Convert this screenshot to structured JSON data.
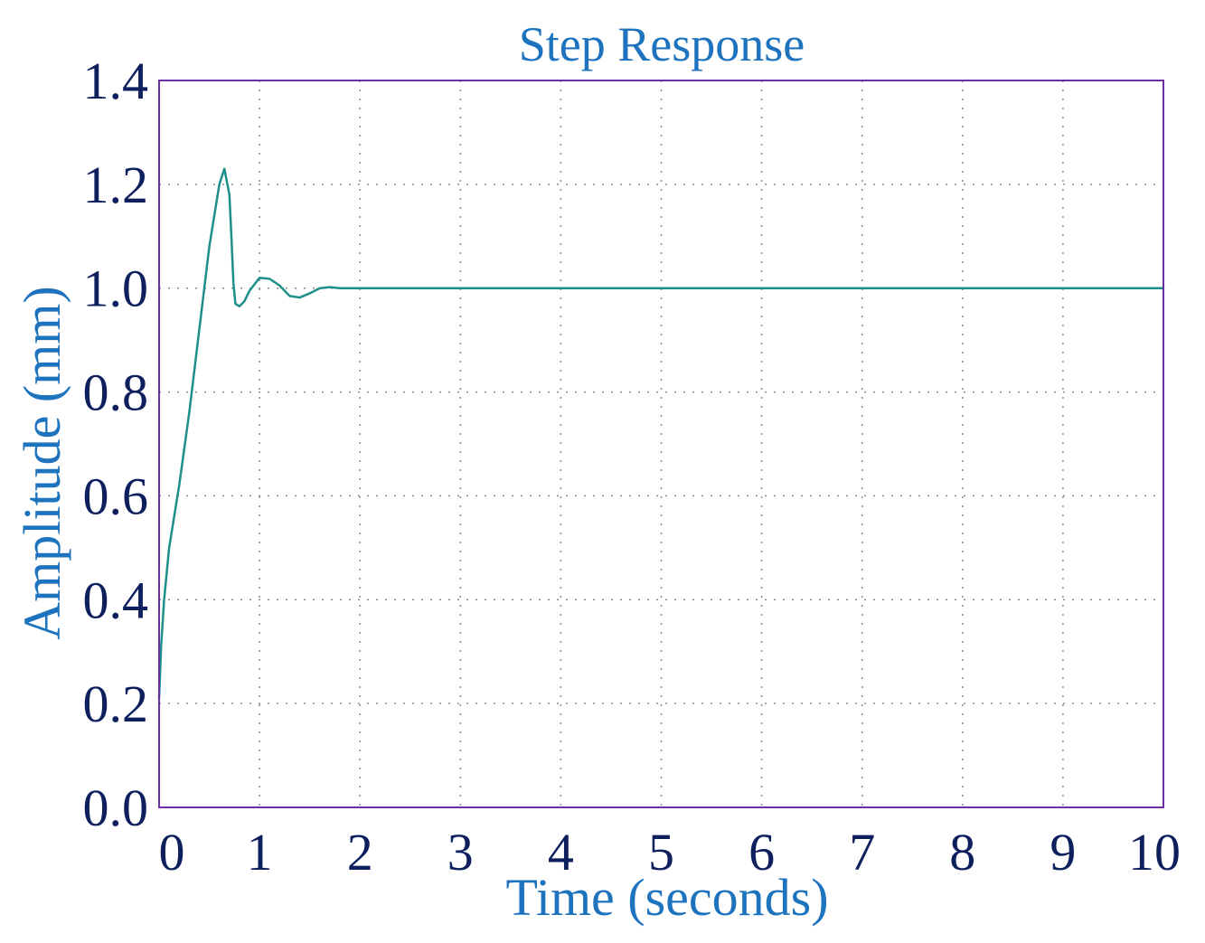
{
  "chart_data": {
    "type": "line",
    "title": "Step Response",
    "xlabel": "Time (seconds)",
    "ylabel": "Amplitude (mm)",
    "xlim": [
      0,
      10
    ],
    "ylim": [
      0,
      1.4
    ],
    "x_ticks": [
      0,
      1,
      2,
      3,
      4,
      5,
      6,
      7,
      8,
      9,
      10
    ],
    "x_tick_labels": [
      "0",
      "1",
      "2",
      "3",
      "4",
      "5",
      "6",
      "7",
      "8",
      "9",
      "10"
    ],
    "y_ticks": [
      0,
      0.2,
      0.4,
      0.6,
      0.8,
      1.0,
      1.2,
      1.4
    ],
    "y_tick_labels": [
      "0.0",
      "0.2",
      "0.4",
      "0.6",
      "0.8",
      "1.0",
      "1.2",
      "1.4"
    ],
    "grid": true,
    "legend": "none",
    "series": [
      {
        "color": "#1f8f8a",
        "x": [
          0,
          0.02,
          0.05,
          0.1,
          0.2,
          0.3,
          0.4,
          0.5,
          0.6,
          0.65,
          0.7,
          0.72,
          0.74,
          0.76,
          0.8,
          0.85,
          0.9,
          1.0,
          1.1,
          1.2,
          1.3,
          1.4,
          1.5,
          1.6,
          1.7,
          1.8,
          2.0,
          3.0,
          4.0,
          5.0,
          6.0,
          7.0,
          8.0,
          9.0,
          10.0
        ],
        "y": [
          0.21,
          0.31,
          0.4,
          0.5,
          0.62,
          0.76,
          0.92,
          1.08,
          1.2,
          1.23,
          1.18,
          1.1,
          1.01,
          0.97,
          0.965,
          0.975,
          0.995,
          1.02,
          1.018,
          1.005,
          0.985,
          0.982,
          0.99,
          1.0,
          1.002,
          1.0,
          1.0,
          1.0,
          1.0,
          1.0,
          1.0,
          1.0,
          1.0,
          1.0,
          1.0
        ]
      }
    ],
    "colors": {
      "title": "#1e73be",
      "axis_label": "#1e73be",
      "tick_labels": "#0d1f5c",
      "frame": "#6b2fa3",
      "grid": "#8c8c8c",
      "line": "#1f8f8a"
    }
  }
}
